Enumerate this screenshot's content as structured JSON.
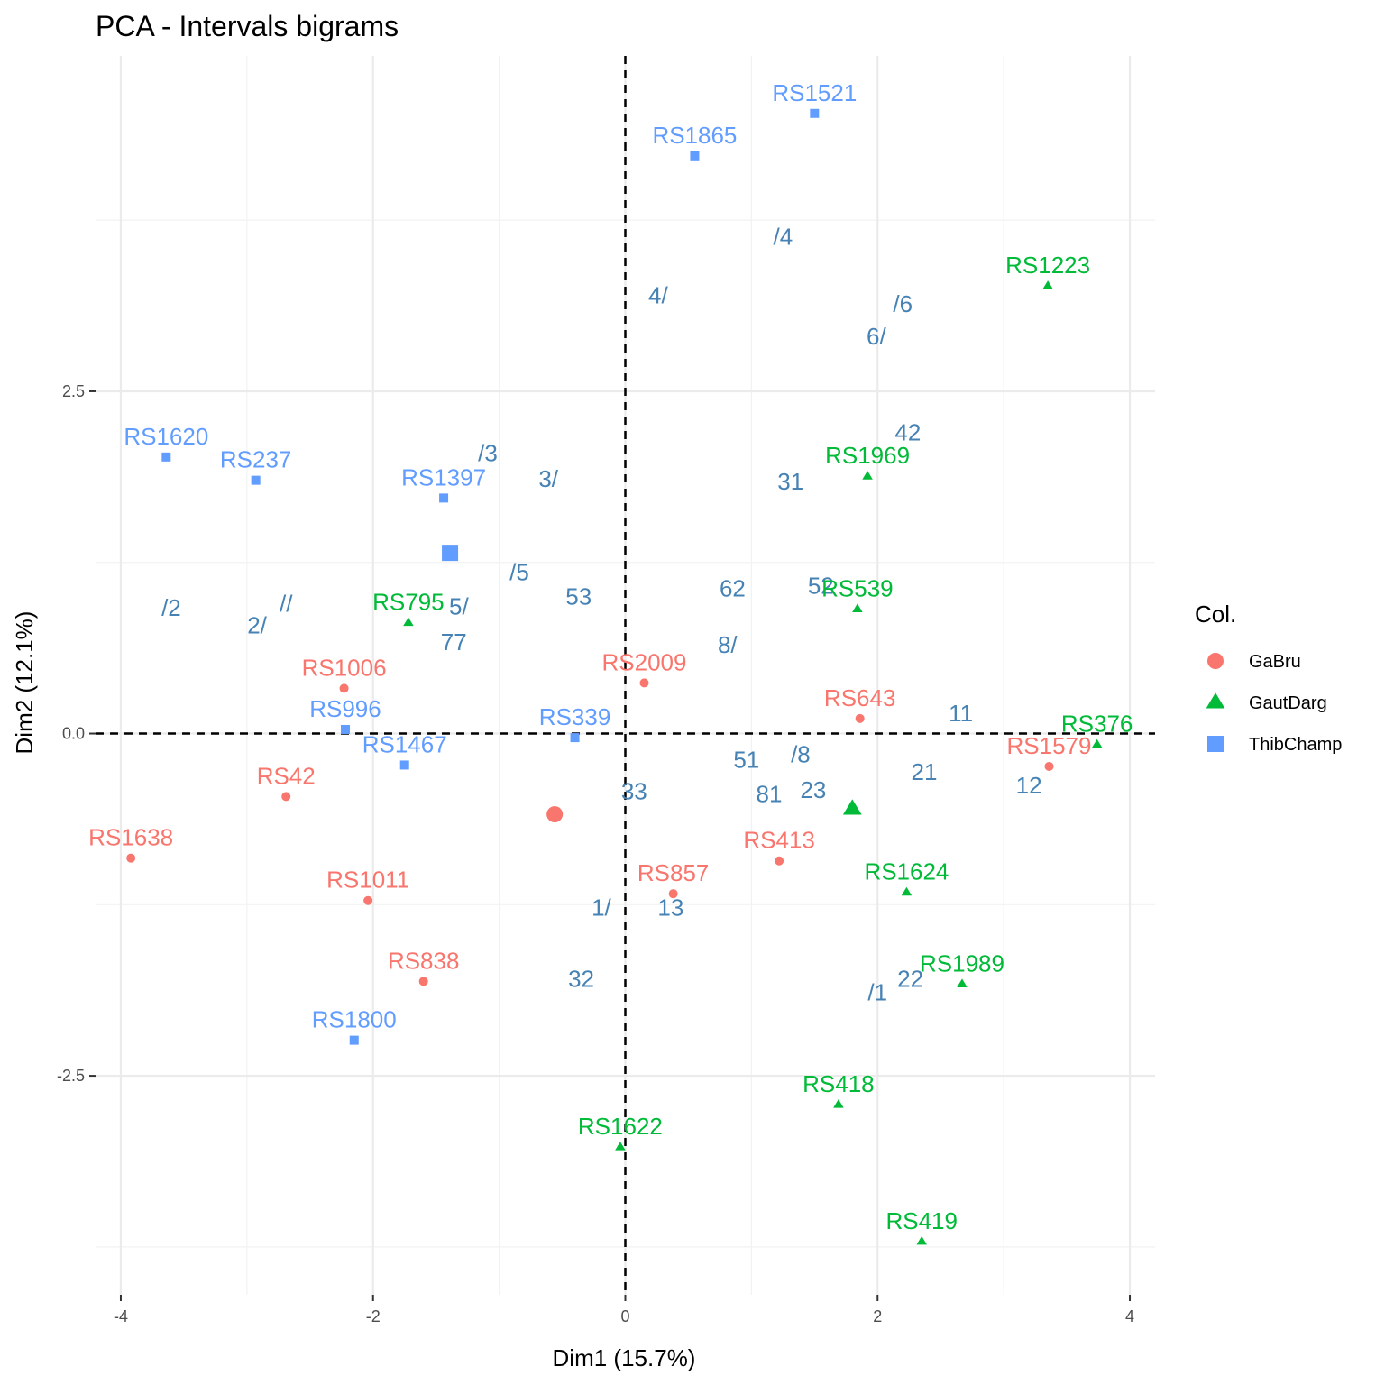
{
  "chart_data": {
    "type": "scatter",
    "title": "PCA - Intervals bigrams",
    "xlabel": "Dim1 (15.7%)",
    "ylabel": "Dim2 (12.1%)",
    "xlim": [
      -4.2,
      4.2
    ],
    "ylim": [
      -4.1,
      4.95
    ],
    "x_ticks": [
      {
        "value": -4,
        "label": "-4"
      },
      {
        "value": -2,
        "label": "-2"
      },
      {
        "value": 0,
        "label": "0"
      },
      {
        "value": 2,
        "label": "2"
      },
      {
        "value": 4,
        "label": "4"
      }
    ],
    "y_ticks": [
      {
        "value": -2.5,
        "label": "-2.5"
      },
      {
        "value": 0,
        "label": "0.0"
      },
      {
        "value": 2.5,
        "label": "2.5"
      }
    ],
    "grid": true,
    "reference_lines": {
      "x": 0,
      "y": 0,
      "style": "dashed"
    },
    "legend": {
      "title": "Col.",
      "placement": "right",
      "entries": [
        {
          "label": "GaBru",
          "color": "#F8766D",
          "shape": "circle"
        },
        {
          "label": "GautDarg",
          "color": "#00BA38",
          "shape": "triangle"
        },
        {
          "label": "ThibChamp",
          "color": "#619CFF",
          "shape": "square"
        }
      ]
    },
    "series": [
      {
        "name": "GaBru",
        "color": "#F8766D",
        "shape": "circle",
        "points": [
          {
            "label": "RS1006",
            "x": -2.23,
            "y": 0.33
          },
          {
            "label": "RS2009",
            "x": 0.15,
            "y": 0.37
          },
          {
            "label": "RS643",
            "x": 1.86,
            "y": 0.11
          },
          {
            "label": "RS1579",
            "x": 3.36,
            "y": -0.24
          },
          {
            "label": "RS42",
            "x": -2.69,
            "y": -0.46
          },
          {
            "label": "RS1638",
            "x": -3.92,
            "y": -0.91
          },
          {
            "label": "RS413",
            "x": 1.22,
            "y": -0.93
          },
          {
            "label": "RS857",
            "x": 0.38,
            "y": -1.17
          },
          {
            "label": "RS1011",
            "x": -2.04,
            "y": -1.22
          },
          {
            "label": "RS838",
            "x": -1.6,
            "y": -1.81
          }
        ],
        "centroid": {
          "x": -0.56,
          "y": -0.59
        }
      },
      {
        "name": "GautDarg",
        "color": "#00BA38",
        "shape": "triangle",
        "points": [
          {
            "label": "RS1223",
            "x": 3.35,
            "y": 3.27
          },
          {
            "label": "RS1969",
            "x": 1.92,
            "y": 1.88
          },
          {
            "label": "RS539",
            "x": 1.84,
            "y": 0.91
          },
          {
            "label": "RS795",
            "x": -1.72,
            "y": 0.81
          },
          {
            "label": "RS376",
            "x": 3.74,
            "y": -0.08
          },
          {
            "label": "RS1624",
            "x": 2.23,
            "y": -1.16
          },
          {
            "label": "RS1989",
            "x": 2.67,
            "y": -1.83
          },
          {
            "label": "RS418",
            "x": 1.69,
            "y": -2.71
          },
          {
            "label": "RS1622",
            "x": -0.04,
            "y": -3.02
          },
          {
            "label": "RS419",
            "x": 2.35,
            "y": -3.71
          }
        ],
        "centroid": {
          "x": 1.8,
          "y": -0.55
        }
      },
      {
        "name": "ThibChamp",
        "color": "#619CFF",
        "shape": "square",
        "points": [
          {
            "label": "RS1521",
            "x": 1.5,
            "y": 4.53
          },
          {
            "label": "RS1865",
            "x": 0.55,
            "y": 4.22
          },
          {
            "label": "RS1620",
            "x": -3.64,
            "y": 2.02
          },
          {
            "label": "RS237",
            "x": -2.93,
            "y": 1.85
          },
          {
            "label": "RS1397",
            "x": -1.44,
            "y": 1.72
          },
          {
            "label": "RS996",
            "x": -2.22,
            "y": 0.03
          },
          {
            "label": "RS339",
            "x": -0.4,
            "y": -0.03
          },
          {
            "label": "RS1467",
            "x": -1.75,
            "y": -0.23
          },
          {
            "label": "RS1800",
            "x": -2.15,
            "y": -2.24
          }
        ],
        "centroid": {
          "x": -1.39,
          "y": 1.32
        }
      }
    ],
    "variables": [
      {
        "label": "/4",
        "x": 1.25,
        "y": 3.63
      },
      {
        "label": "4/",
        "x": 0.26,
        "y": 3.2
      },
      {
        "label": "/6",
        "x": 2.2,
        "y": 3.14
      },
      {
        "label": "6/",
        "x": 1.99,
        "y": 2.9
      },
      {
        "label": "42",
        "x": 2.24,
        "y": 2.2
      },
      {
        "label": "/3",
        "x": -1.09,
        "y": 2.05
      },
      {
        "label": "3/",
        "x": -0.61,
        "y": 1.86
      },
      {
        "label": "31",
        "x": 1.31,
        "y": 1.84
      },
      {
        "label": "/5",
        "x": -0.84,
        "y": 1.18
      },
      {
        "label": "53",
        "x": -0.37,
        "y": 1.0
      },
      {
        "label": "62",
        "x": 0.85,
        "y": 1.06
      },
      {
        "label": "52",
        "x": 1.55,
        "y": 1.08
      },
      {
        "label": "/2",
        "x": -3.6,
        "y": 0.92
      },
      {
        "label": "2/",
        "x": -2.92,
        "y": 0.79
      },
      {
        "label": "//",
        "x": -2.69,
        "y": 0.95
      },
      {
        "label": "5/",
        "x": -1.32,
        "y": 0.93
      },
      {
        "label": "77",
        "x": -1.36,
        "y": 0.67
      },
      {
        "label": "8/",
        "x": 0.81,
        "y": 0.65
      },
      {
        "label": "11",
        "x": 2.66,
        "y": 0.15
      },
      {
        "label": "51",
        "x": 0.96,
        "y": -0.19
      },
      {
        "label": "/8",
        "x": 1.39,
        "y": -0.15
      },
      {
        "label": "21",
        "x": 2.37,
        "y": -0.28
      },
      {
        "label": "12",
        "x": 3.2,
        "y": -0.38
      },
      {
        "label": "81",
        "x": 1.14,
        "y": -0.44
      },
      {
        "label": "23",
        "x": 1.49,
        "y": -0.41
      },
      {
        "label": "33",
        "x": 0.07,
        "y": -0.42
      },
      {
        "label": "1/",
        "x": -0.19,
        "y": -1.27
      },
      {
        "label": "13",
        "x": 0.36,
        "y": -1.27
      },
      {
        "label": "32",
        "x": -0.35,
        "y": -1.79
      },
      {
        "label": "22",
        "x": 2.26,
        "y": -1.79
      },
      {
        "label": "/1",
        "x": 2.0,
        "y": -1.89
      }
    ]
  }
}
